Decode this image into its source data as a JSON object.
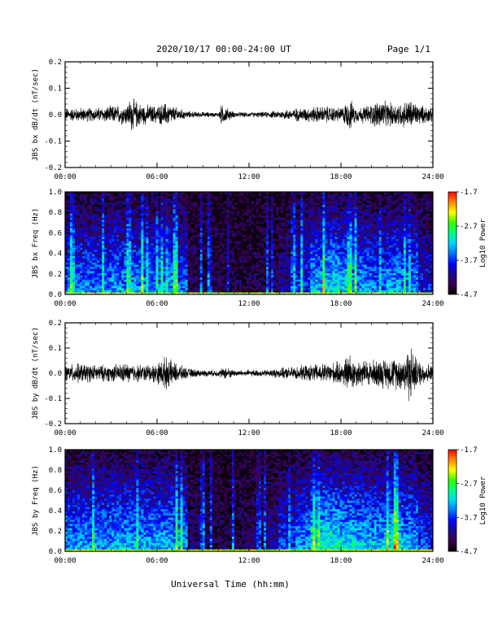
{
  "header": {
    "title": "2020/10/17  00:00-24:00 UT",
    "page_label": "Page 1/1"
  },
  "footer": {
    "xlabel": "Universal Time (hh:mm)"
  },
  "colors": {
    "trace": "#000000",
    "axis": "#000000",
    "colormap": [
      "#000000",
      "#3a004a",
      "#1a0a8a",
      "#0000ff",
      "#0077ff",
      "#00d8ff",
      "#00ff88",
      "#33ff00",
      "#ffff00",
      "#ff8800",
      "#ff0000"
    ]
  },
  "chart_data": [
    {
      "type": "line",
      "ylabel": "JBS bx dB/dt (nT/sec)",
      "ylim": [
        -0.2,
        0.2
      ],
      "yticks": [
        "0.2",
        "0.1",
        "0.0",
        "-0.1",
        "-0.2"
      ],
      "xlim": [
        0,
        24
      ],
      "xticks": [
        "00:00",
        "06:00",
        "12:00",
        "18:00",
        "24:00"
      ],
      "series": [
        {
          "x": [
            0,
            1,
            2,
            3,
            4,
            4.3,
            5,
            6,
            6.6,
            7,
            8,
            9,
            10,
            10.2,
            11,
            12,
            13,
            14,
            15,
            16,
            17,
            18,
            18.6,
            19,
            20,
            20.5,
            21,
            22,
            22.5,
            23,
            24
          ],
          "amplitude": [
            0.018,
            0.02,
            0.02,
            0.025,
            0.03,
            0.05,
            0.03,
            0.025,
            0.035,
            0.025,
            0.01,
            0.008,
            0.006,
            0.03,
            0.008,
            0.007,
            0.008,
            0.012,
            0.018,
            0.022,
            0.025,
            0.02,
            0.045,
            0.02,
            0.03,
            0.045,
            0.035,
            0.035,
            0.045,
            0.03,
            0.02
          ]
        }
      ]
    },
    {
      "type": "heatmap",
      "ylabel": "JBS bx Freq (Hz)",
      "ylim": [
        0.0,
        1.0
      ],
      "yticks": [
        "1.0",
        "0.8",
        "0.6",
        "0.4",
        "0.2",
        "0.0"
      ],
      "xlim": [
        0,
        24
      ],
      "xticks": [
        "00:00",
        "06:00",
        "12:00",
        "18:00",
        "24:00"
      ],
      "colorbar": {
        "label": "Log10 Power",
        "range": [
          -4.7,
          -1.7
        ],
        "ticks": [
          "-1.7",
          "-2.7",
          "-3.7",
          "-4.7"
        ]
      },
      "activity_by_hour": [
        0.42,
        0.42,
        0.42,
        0.45,
        0.45,
        0.45,
        0.45,
        0.4,
        0.12,
        0.1,
        0.1,
        0.1,
        0.1,
        0.12,
        0.2,
        0.35,
        0.5,
        0.55,
        0.5,
        0.45,
        0.42,
        0.48,
        0.45,
        0.3
      ]
    },
    {
      "type": "line",
      "ylabel": "JBS by dB/dt (nT/sec)",
      "ylim": [
        -0.2,
        0.2
      ],
      "yticks": [
        "0.2",
        "0.1",
        "0.0",
        "-0.1",
        "-0.2"
      ],
      "xlim": [
        0,
        24
      ],
      "xticks": [
        "00:00",
        "06:00",
        "12:00",
        "18:00",
        "24:00"
      ],
      "series": [
        {
          "x": [
            0,
            1,
            2,
            3,
            4,
            5,
            6,
            6.5,
            7,
            8,
            9,
            10,
            10.5,
            11,
            12,
            13,
            14,
            15,
            16,
            17,
            18,
            18.6,
            19,
            20,
            21,
            22,
            22.5,
            23,
            24
          ],
          "amplitude": [
            0.025,
            0.03,
            0.025,
            0.025,
            0.03,
            0.025,
            0.03,
            0.05,
            0.035,
            0.015,
            0.01,
            0.01,
            0.02,
            0.01,
            0.01,
            0.01,
            0.015,
            0.02,
            0.025,
            0.03,
            0.035,
            0.06,
            0.04,
            0.04,
            0.045,
            0.05,
            0.09,
            0.04,
            0.025
          ]
        }
      ]
    },
    {
      "type": "heatmap",
      "ylabel": "JBS by Freq (Hz)",
      "ylim": [
        0.0,
        1.0
      ],
      "yticks": [
        "1.0",
        "0.8",
        "0.6",
        "0.4",
        "0.2",
        "0.0"
      ],
      "xlim": [
        0,
        24
      ],
      "xticks": [
        "00:00",
        "06:00",
        "12:00",
        "18:00",
        "24:00"
      ],
      "colorbar": {
        "label": "Log10 Power",
        "range": [
          -4.7,
          -1.7
        ],
        "ticks": [
          "-1.7",
          "-2.7",
          "-3.7",
          "-4.7"
        ]
      },
      "activity_by_hour": [
        0.45,
        0.45,
        0.45,
        0.48,
        0.48,
        0.48,
        0.48,
        0.45,
        0.15,
        0.12,
        0.12,
        0.12,
        0.15,
        0.2,
        0.35,
        0.45,
        0.6,
        0.6,
        0.55,
        0.52,
        0.5,
        0.55,
        0.5,
        0.35
      ]
    }
  ]
}
